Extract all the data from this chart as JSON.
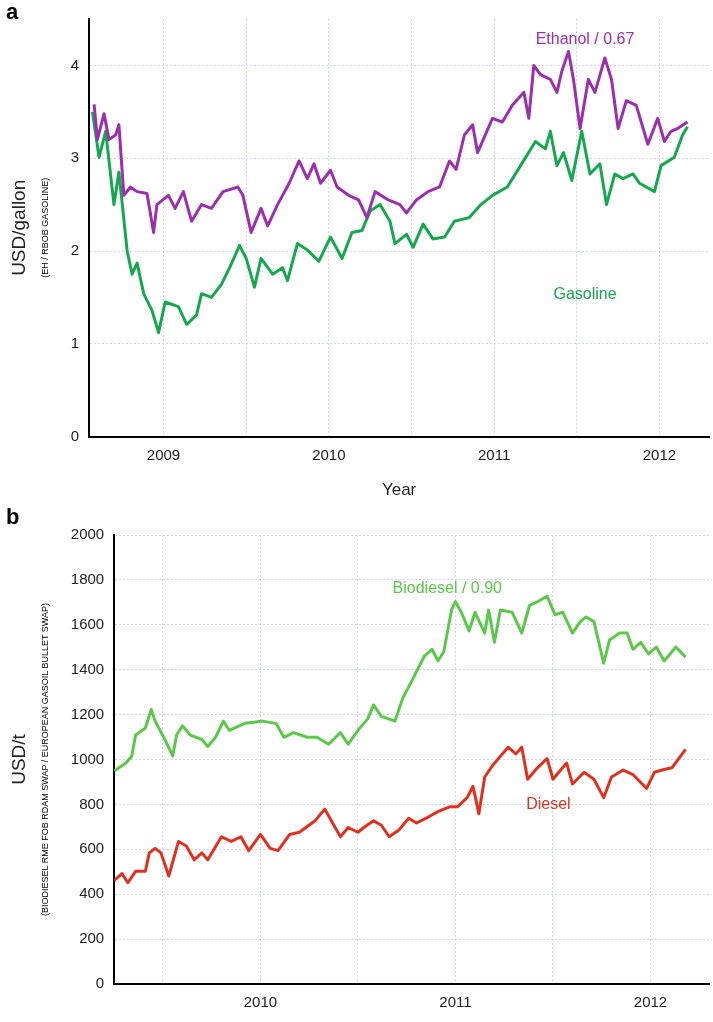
{
  "chart_data": [
    {
      "type": "line",
      "title": "a",
      "xlabel": "Year",
      "ylabel": "USD/gallon",
      "annotations": [
        "(EH / RBOB GASOLINE)"
      ],
      "marker": "none",
      "line_style": "solid",
      "grid": true,
      "xlim": [
        2008.55,
        2012.3
      ],
      "xticks": [
        2009,
        {
          "value": 2009.5,
          "label": null
        },
        2010,
        {
          "value": 2010.5,
          "label": null
        },
        2011,
        {
          "value": 2011.5,
          "label": null
        },
        2012
      ],
      "ylim": [
        0,
        4.5
      ],
      "yticks": [
        0,
        1,
        2,
        3,
        4
      ],
      "series": [
        {
          "name": "Ethanol / 0.67",
          "color": "#9b2fae",
          "x": [
            2008.58,
            2008.6,
            2008.64,
            2008.67,
            2008.71,
            2008.73,
            2008.76,
            2008.8,
            2008.84,
            2008.9,
            2008.94,
            2008.96,
            2009.03,
            2009.07,
            2009.12,
            2009.17,
            2009.23,
            2009.29,
            2009.36,
            2009.45,
            2009.48,
            2009.53,
            2009.59,
            2009.63,
            2009.69,
            2009.76,
            2009.82,
            2009.87,
            2009.91,
            2009.95,
            2010.01,
            2010.05,
            2010.12,
            2010.18,
            2010.23,
            2010.28,
            2010.36,
            2010.43,
            2010.47,
            2010.53,
            2010.6,
            2010.67,
            2010.73,
            2010.77,
            2010.82,
            2010.87,
            2010.9,
            2010.99,
            2011.05,
            2011.11,
            2011.18,
            2011.21,
            2011.24,
            2011.28,
            2011.34,
            2011.38,
            2011.41,
            2011.45,
            2011.48,
            2011.52,
            2011.57,
            2011.61,
            2011.67,
            2011.71,
            2011.75,
            2011.8,
            2011.86,
            2011.93,
            2011.99,
            2012.03,
            2012.07,
            2012.11,
            2012.17
          ],
          "values": [
            3.58,
            3.2,
            3.48,
            3.2,
            3.25,
            3.36,
            2.6,
            2.69,
            2.64,
            2.62,
            2.2,
            2.5,
            2.6,
            2.46,
            2.64,
            2.32,
            2.5,
            2.46,
            2.64,
            2.69,
            2.6,
            2.2,
            2.46,
            2.27,
            2.5,
            2.73,
            2.97,
            2.78,
            2.94,
            2.73,
            2.87,
            2.69,
            2.6,
            2.55,
            2.36,
            2.64,
            2.55,
            2.5,
            2.41,
            2.55,
            2.64,
            2.69,
            2.97,
            2.88,
            3.25,
            3.36,
            3.06,
            3.43,
            3.39,
            3.57,
            3.71,
            3.43,
            4.0,
            3.9,
            3.85,
            3.71,
            3.94,
            4.15,
            3.85,
            3.32,
            3.85,
            3.71,
            4.08,
            3.85,
            3.32,
            3.62,
            3.57,
            3.15,
            3.43,
            3.18,
            3.29,
            3.32,
            3.39
          ]
        },
        {
          "name": "Gasoline",
          "color": "#16a84f",
          "x": [
            2008.57,
            2008.61,
            2008.65,
            2008.7,
            2008.73,
            2008.78,
            2008.81,
            2008.84,
            2008.88,
            2008.93,
            2008.97,
            2009.01,
            2009.09,
            2009.14,
            2009.2,
            2009.23,
            2009.29,
            2009.35,
            2009.4,
            2009.46,
            2009.5,
            2009.55,
            2009.59,
            2009.66,
            2009.72,
            2009.75,
            2009.81,
            2009.87,
            2009.94,
            2010.01,
            2010.08,
            2010.14,
            2010.2,
            2010.25,
            2010.31,
            2010.37,
            2010.4,
            2010.47,
            2010.51,
            2010.57,
            2010.63,
            2010.7,
            2010.76,
            2010.85,
            2010.92,
            2010.99,
            2011.08,
            2011.16,
            2011.25,
            2011.31,
            2011.34,
            2011.38,
            2011.42,
            2011.47,
            2011.53,
            2011.58,
            2011.64,
            2011.68,
            2011.73,
            2011.78,
            2011.84,
            2011.88,
            2011.97,
            2012.01,
            2012.09,
            2012.14,
            2012.17
          ],
          "values": [
            3.5,
            3.01,
            3.29,
            2.5,
            2.85,
            2.0,
            1.75,
            1.87,
            1.54,
            1.36,
            1.12,
            1.45,
            1.4,
            1.21,
            1.31,
            1.54,
            1.5,
            1.64,
            1.82,
            2.06,
            1.92,
            1.61,
            1.92,
            1.75,
            1.82,
            1.68,
            2.08,
            2.01,
            1.89,
            2.15,
            1.92,
            2.2,
            2.22,
            2.43,
            2.5,
            2.32,
            2.08,
            2.18,
            2.04,
            2.29,
            2.13,
            2.15,
            2.32,
            2.36,
            2.5,
            2.6,
            2.69,
            2.92,
            3.18,
            3.1,
            3.29,
            2.92,
            3.06,
            2.76,
            3.29,
            2.83,
            2.94,
            2.5,
            2.83,
            2.78,
            2.83,
            2.73,
            2.64,
            2.92,
            3.01,
            3.25,
            3.34
          ]
        }
      ]
    },
    {
      "type": "line",
      "title": "b",
      "ylabel": "USD/t",
      "annotations": [
        "(BIODIESEL RME FOB RDAM SWAP / EUROPEAN GASOIL BULLET SWAP)"
      ],
      "marker": "none",
      "line_style": "solid",
      "grid": true,
      "xlim": [
        2009.25,
        2012.3
      ],
      "xticks": [
        {
          "value": 2009.5,
          "label": null
        },
        2010,
        {
          "value": 2010.5,
          "label": null
        },
        2011,
        {
          "value": 2011.5,
          "label": null
        },
        2012
      ],
      "ylim": [
        0,
        2000
      ],
      "yticks": [
        0,
        200,
        400,
        600,
        800,
        1000,
        1200,
        1400,
        1600,
        1800,
        2000
      ],
      "series": [
        {
          "name": "Biodiesel / 0.90",
          "color": "#5bc84a",
          "x": [
            2009.25,
            2009.31,
            2009.34,
            2009.36,
            2009.41,
            2009.44,
            2009.46,
            2009.51,
            2009.55,
            2009.57,
            2009.6,
            2009.64,
            2009.7,
            2009.73,
            2009.77,
            2009.81,
            2009.84,
            2009.92,
            2010.01,
            2010.08,
            2010.12,
            2010.17,
            2010.24,
            2010.29,
            2010.35,
            2010.41,
            2010.45,
            2010.5,
            2010.55,
            2010.58,
            2010.62,
            2010.69,
            2010.73,
            2010.78,
            2010.84,
            2010.88,
            2010.91,
            2010.94,
            2010.98,
            2011.0,
            2011.03,
            2011.07,
            2011.1,
            2011.15,
            2011.17,
            2011.2,
            2011.23,
            2011.29,
            2011.34,
            2011.38,
            2011.43,
            2011.47,
            2011.51,
            2011.55,
            2011.6,
            2011.64,
            2011.67,
            2011.71,
            2011.76,
            2011.79,
            2011.84,
            2011.88,
            2011.91,
            2011.95,
            2011.99,
            2012.03,
            2012.07,
            2012.13,
            2012.18
          ],
          "values": [
            949,
            984,
            1014,
            1109,
            1140,
            1223,
            1171,
            1089,
            1016,
            1109,
            1150,
            1109,
            1089,
            1058,
            1099,
            1171,
            1130,
            1161,
            1171,
            1161,
            1099,
            1120,
            1099,
            1099,
            1068,
            1120,
            1068,
            1130,
            1181,
            1243,
            1192,
            1171,
            1274,
            1357,
            1460,
            1491,
            1439,
            1480,
            1666,
            1703,
            1656,
            1573,
            1656,
            1563,
            1666,
            1522,
            1666,
            1656,
            1563,
            1687,
            1707,
            1728,
            1645,
            1656,
            1563,
            1614,
            1635,
            1614,
            1429,
            1532,
            1563,
            1563,
            1491,
            1522,
            1470,
            1501,
            1439,
            1501,
            1456
          ]
        },
        {
          "name": "Diesel",
          "color": "#e0301e",
          "x": [
            2009.25,
            2009.29,
            2009.32,
            2009.36,
            2009.41,
            2009.43,
            2009.46,
            2009.49,
            2009.53,
            2009.58,
            2009.62,
            2009.66,
            2009.7,
            2009.73,
            2009.8,
            2009.85,
            2009.9,
            2009.94,
            2010.0,
            2010.05,
            2010.09,
            2010.15,
            2010.2,
            2010.28,
            2010.33,
            2010.37,
            2010.41,
            2010.45,
            2010.5,
            2010.53,
            2010.58,
            2010.62,
            2010.66,
            2010.71,
            2010.76,
            2010.8,
            2010.87,
            2010.91,
            2010.97,
            2011.01,
            2011.06,
            2011.09,
            2011.12,
            2011.15,
            2011.19,
            2011.22,
            2011.27,
            2011.31,
            2011.34,
            2011.37,
            2011.42,
            2011.47,
            2011.5,
            2011.53,
            2011.57,
            2011.6,
            2011.66,
            2011.71,
            2011.76,
            2011.8,
            2011.86,
            2011.91,
            2011.98,
            2012.02,
            2012.06,
            2012.11,
            2012.18
          ],
          "values": [
            461,
            492,
            451,
            502,
            502,
            584,
            604,
            584,
            481,
            635,
            615,
            553,
            584,
            553,
            656,
            635,
            656,
            594,
            666,
            604,
            594,
            666,
            676,
            727,
            779,
            717,
            656,
            697,
            676,
            697,
            727,
            707,
            656,
            686,
            738,
            717,
            748,
            768,
            789,
            789,
            830,
            881,
            758,
            922,
            973,
            1004,
            1055,
            1025,
            1055,
            912,
            963,
            1004,
            912,
            943,
            984,
            891,
            943,
            912,
            830,
            922,
            953,
            933,
            871,
            943,
            953,
            963,
            1045
          ]
        }
      ]
    }
  ]
}
